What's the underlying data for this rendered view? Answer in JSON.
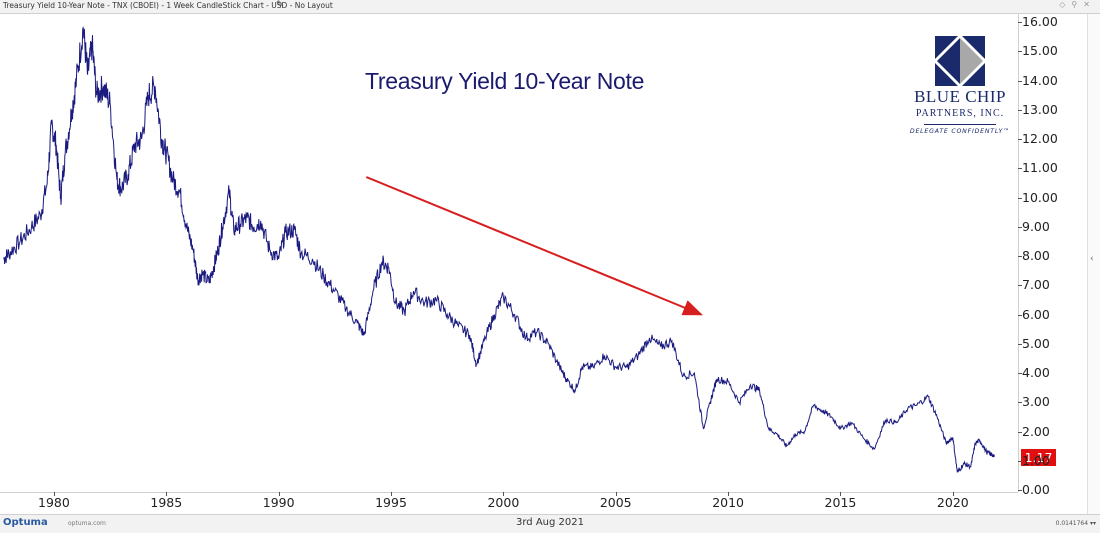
{
  "header": {
    "title": "Treasury Yield 10-Year Note - TNX (CBOEI) - 1 Week CandleStick Chart - USD - No Layout",
    "pencil_icon": "pencil-icon"
  },
  "footer": {
    "logo_text": "Optuma",
    "logo_url": "optuma.com",
    "date": "3rd Aug 2021",
    "scale_text": "0.0141764 ▾▾"
  },
  "brand": {
    "name_line1": "BLUE CHIP",
    "name_line2": "PARTNERS, INC.",
    "tagline": "DELEGATE CONFIDENTLY™",
    "colors": {
      "navy": "#1a2a6a",
      "gray": "#a8a8a8"
    }
  },
  "colors": {
    "series": "#1a1a80",
    "arrow": "#d81f1f",
    "last_price_badge": "#e01010"
  },
  "chart_data": {
    "type": "line",
    "title": "Treasury Yield 10-Year Note",
    "last_value_label": "1.17",
    "x_ticks": [
      "1980",
      "1985",
      "1990",
      "1995",
      "2000",
      "2005",
      "2010",
      "2015",
      "2020"
    ],
    "y_ticks": [
      "0.00",
      "1.00",
      "2.00",
      "3.00",
      "4.00",
      "5.00",
      "6.00",
      "7.00",
      "8.00",
      "9.00",
      "10.00",
      "11.00",
      "12.00",
      "13.00",
      "14.00",
      "15.00",
      "16.00"
    ],
    "xlim": [
      1977.6,
      2022.9
    ],
    "ylim": [
      0,
      16
    ],
    "grid": false,
    "annotations": [
      {
        "type": "arrow",
        "from": {
          "x": 1993.9,
          "y": 10.7
        },
        "to": {
          "x": 2008.8,
          "y": 6.0
        },
        "meaning": "downtrend"
      }
    ],
    "series": [
      {
        "x": [
          1977.75,
          1978.0,
          1978.5,
          1979.0,
          1979.4,
          1979.7,
          1979.9,
          1980.1,
          1980.3,
          1980.5,
          1980.8,
          1981.0,
          1981.3,
          1981.5,
          1981.7,
          1981.9,
          1982.2,
          1982.5,
          1982.8,
          1983.0,
          1983.3,
          1983.6,
          1983.9,
          1984.2,
          1984.5,
          1984.8,
          1985.0,
          1985.3,
          1985.6,
          1985.9,
          1986.2,
          1986.4,
          1986.6,
          1986.9,
          1987.1,
          1987.3,
          1987.5,
          1987.8,
          1988.0,
          1988.3,
          1988.6,
          1988.9,
          1989.2,
          1989.6,
          1990.0,
          1990.3,
          1990.7,
          1991.0,
          1991.5,
          1992.0,
          1992.5,
          1993.0,
          1993.5,
          1993.8,
          1994.2,
          1994.6,
          1994.9,
          1995.2,
          1995.6,
          1996.0,
          1996.5,
          1997.0,
          1997.5,
          1998.0,
          1998.5,
          1998.8,
          1999.2,
          1999.6,
          2000.0,
          2000.5,
          2001.0,
          2001.5,
          2002.0,
          2002.5,
          2002.8,
          2003.2,
          2003.5,
          2004.0,
          2004.5,
          2005.0,
          2005.5,
          2006.0,
          2006.5,
          2007.0,
          2007.5,
          2008.0,
          2008.5,
          2008.9,
          2009.2,
          2009.5,
          2010.0,
          2010.5,
          2011.0,
          2011.4,
          2011.8,
          2012.2,
          2012.6,
          2013.0,
          2013.4,
          2013.8,
          2014.2,
          2014.6,
          2015.0,
          2015.5,
          2016.0,
          2016.5,
          2017.0,
          2017.5,
          2018.0,
          2018.4,
          2018.9,
          2019.3,
          2019.7,
          2020.0,
          2020.2,
          2020.5,
          2020.8,
          2021.0,
          2021.2,
          2021.5,
          2021.8
        ],
        "y": [
          7.9,
          8.1,
          8.5,
          9.0,
          9.4,
          10.5,
          12.5,
          11.8,
          10.0,
          11.5,
          13.0,
          14.0,
          15.8,
          14.2,
          15.2,
          13.5,
          13.8,
          13.2,
          10.6,
          10.3,
          10.8,
          11.8,
          12.0,
          13.5,
          13.8,
          12.0,
          11.5,
          10.6,
          10.2,
          9.0,
          8.2,
          7.2,
          7.4,
          7.1,
          7.6,
          8.2,
          9.0,
          10.2,
          8.9,
          9.1,
          9.3,
          9.0,
          9.2,
          8.2,
          7.9,
          8.8,
          8.9,
          8.1,
          7.9,
          7.3,
          6.8,
          6.2,
          5.7,
          5.3,
          6.8,
          7.8,
          7.6,
          6.4,
          6.1,
          6.8,
          6.4,
          6.5,
          6.0,
          5.6,
          5.3,
          4.3,
          5.2,
          6.0,
          6.6,
          6.0,
          5.2,
          5.4,
          5.0,
          4.2,
          3.8,
          3.4,
          4.2,
          4.2,
          4.6,
          4.2,
          4.2,
          4.6,
          5.2,
          4.9,
          5.1,
          3.9,
          4.0,
          2.1,
          3.0,
          3.8,
          3.7,
          3.0,
          3.6,
          3.4,
          2.1,
          1.9,
          1.5,
          1.9,
          2.0,
          2.9,
          2.7,
          2.5,
          2.1,
          2.3,
          1.8,
          1.4,
          2.4,
          2.3,
          2.8,
          2.9,
          3.2,
          2.5,
          1.6,
          1.8,
          0.6,
          0.9,
          0.8,
          1.6,
          1.7,
          1.3,
          1.17
        ]
      }
    ]
  }
}
